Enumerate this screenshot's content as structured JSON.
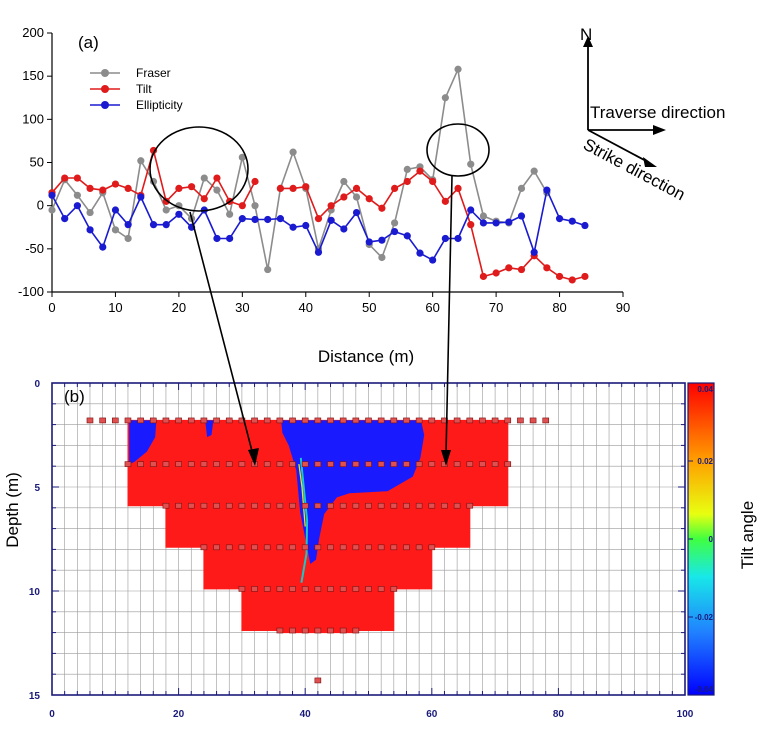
{
  "panel_a": {
    "label": "(a)",
    "x_axis_label": "Distance (m)",
    "legend": [
      "Fraser",
      "Tilt",
      "Ellipticity"
    ]
  },
  "compass": {
    "north": "N",
    "traverse": "Traverse direction",
    "strike": "Strike direction"
  },
  "panel_b": {
    "label": "(b)",
    "y_axis_label": "Depth (m)",
    "colorbar_label": "Tilt angle"
  },
  "colors": {
    "fraser": "#8c8c8c",
    "tilt": "#e01b1b",
    "ellipticity": "#1a1ad0",
    "section_red": "#ff1a1a",
    "section_blue": "#1a1aff",
    "axis_navy": "#1a1a7a"
  },
  "chart_data": [
    {
      "type": "line",
      "title": "",
      "xlabel": "Distance (m)",
      "ylabel": "",
      "xlim": [
        0,
        90
      ],
      "ylim": [
        -100,
        200
      ],
      "xticks": [
        0,
        10,
        20,
        30,
        40,
        50,
        60,
        70,
        80,
        90
      ],
      "yticks": [
        -100,
        -50,
        0,
        50,
        100,
        150,
        200
      ],
      "legend_position": "top-left",
      "grid": false,
      "x": [
        0,
        2,
        4,
        6,
        8,
        10,
        12,
        14,
        16,
        18,
        20,
        22,
        24,
        26,
        28,
        30,
        32,
        34,
        36,
        38,
        40,
        42,
        44,
        46,
        48,
        50,
        52,
        54,
        56,
        58,
        60,
        62,
        64,
        66,
        68,
        70,
        72,
        74,
        76,
        78,
        80,
        82,
        84
      ],
      "series": [
        {
          "name": "Fraser",
          "values": [
            -5,
            30,
            12,
            -8,
            15,
            -28,
            -38,
            52,
            28,
            -5,
            0,
            -15,
            32,
            18,
            -10,
            56,
            0,
            -74,
            20,
            62,
            20,
            -50,
            -5,
            28,
            10,
            -45,
            -60,
            -20,
            42,
            45,
            30,
            125,
            158,
            48,
            -12,
            -18,
            -20,
            20,
            40,
            15,
            null,
            null,
            null
          ]
        },
        {
          "name": "Tilt",
          "values": [
            15,
            32,
            32,
            20,
            18,
            25,
            20,
            12,
            64,
            5,
            20,
            22,
            8,
            32,
            5,
            0,
            28,
            null,
            20,
            20,
            22,
            -15,
            0,
            10,
            20,
            8,
            -3,
            20,
            28,
            40,
            28,
            5,
            20,
            -22,
            -82,
            -78,
            -72,
            -74,
            -58,
            -72,
            -82,
            -86,
            -82
          ]
        },
        {
          "name": "Ellipticity",
          "values": [
            12,
            -15,
            0,
            -28,
            -48,
            -5,
            -22,
            10,
            -22,
            -22,
            -10,
            -25,
            -5,
            -38,
            -38,
            -15,
            -16,
            -16,
            -15,
            -25,
            -23,
            -54,
            -17,
            -27,
            -8,
            -42,
            -40,
            -30,
            -35,
            -55,
            -63,
            -38,
            -38,
            -5,
            -20,
            -20,
            -19,
            -12,
            -54,
            18,
            -15,
            -18,
            -23
          ]
        }
      ]
    },
    {
      "type": "heatmap",
      "title": "",
      "xlabel": "",
      "ylabel": "Depth (m)",
      "xlim": [
        0,
        100
      ],
      "ylim": [
        0,
        15
      ],
      "y_reversed": true,
      "xticks": [
        0,
        20,
        40,
        60,
        80,
        100
      ],
      "yticks": [
        0,
        5,
        10,
        15
      ],
      "grid": true,
      "colorbar": {
        "label": "Tilt angle",
        "ticks": [
          0.04,
          0.02,
          0,
          -0.02,
          -0.04
        ],
        "min": -0.04,
        "max": 0.04
      },
      "trapezoid_section_levels": [
        {
          "depth_top": 1.8,
          "x_from": 6,
          "x_to": 78
        },
        {
          "depth_top": 3.9,
          "x_from": 12,
          "x_to": 72
        },
        {
          "depth_top": 5.9,
          "x_from": 18,
          "x_to": 66
        },
        {
          "depth_top": 7.9,
          "x_from": 24,
          "x_to": 60
        },
        {
          "depth_top": 9.9,
          "x_from": 30,
          "x_to": 54
        },
        {
          "depth_top": 11.9,
          "x_from": 36,
          "x_to": 48
        }
      ],
      "inverted_region_bottom_depth": 12,
      "negative_anomaly_zone_x": [
        40,
        58
      ],
      "isolated_point": {
        "x": 42,
        "depth": 14.3
      }
    }
  ]
}
